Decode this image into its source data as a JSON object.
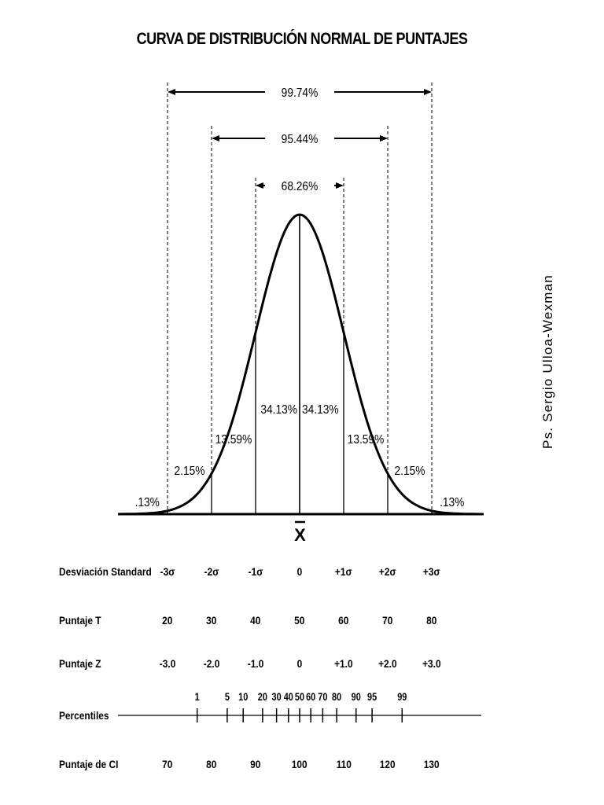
{
  "title": "CURVA DE DISTRIBUCIÓN NORMAL DE PUNTAJES",
  "author": "Ps. Sergio Ulloa-Wexman",
  "mean_symbol": "X",
  "range_labels": [
    "99.74%",
    "95.44%",
    "68.26%"
  ],
  "area_labels": [
    ".13%",
    "2.15%",
    "13.59%",
    "34.13%",
    "34.13%",
    "13.59%",
    "2.15%",
    ".13%"
  ],
  "rows": {
    "desviacion": {
      "label": "Desviación Standard",
      "values": [
        "-3σ",
        "-2σ",
        "-1σ",
        "0",
        "+1σ",
        "+2σ",
        "+3σ"
      ]
    },
    "puntaje_t": {
      "label": "Puntaje T",
      "values": [
        "20",
        "30",
        "40",
        "50",
        "60",
        "70",
        "80"
      ]
    },
    "puntaje_z": {
      "label": "Puntaje Z",
      "values": [
        "-3.0",
        "-2.0",
        "-1.0",
        "0",
        "+1.0",
        "+2.0",
        "+3.0"
      ]
    },
    "percentiles": {
      "label": "Percentiles",
      "values": [
        "1",
        "5",
        "10",
        "20",
        "30",
        "40",
        "50",
        "60",
        "70",
        "80",
        "90",
        "95",
        "99"
      ]
    },
    "puntaje_ci": {
      "label": "Puntaje de CI",
      "values": [
        "70",
        "80",
        "90",
        "100",
        "110",
        "120",
        "130"
      ]
    }
  }
}
